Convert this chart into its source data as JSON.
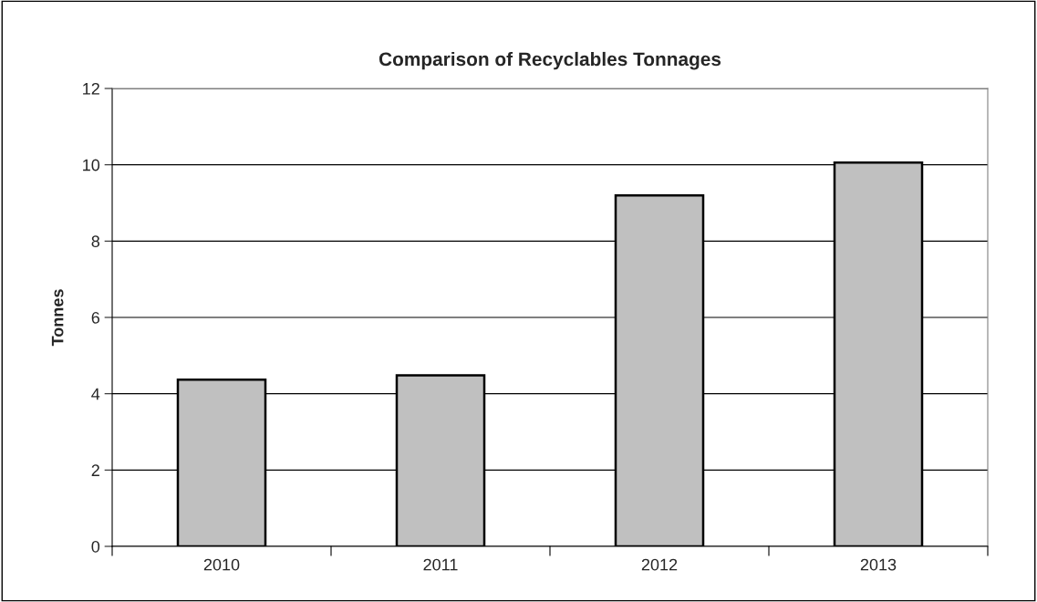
{
  "chart_data": {
    "type": "bar",
    "title": "Comparison of Recyclables Tonnages",
    "ylabel": "Tonnes",
    "categories": [
      "2010",
      "2011",
      "2012",
      "2013"
    ],
    "values": [
      4.37,
      4.48,
      9.2,
      10.06
    ],
    "color": "#c0c0c0",
    "ylim": [
      0,
      12
    ],
    "yticks": [
      0,
      2,
      4,
      6,
      8,
      10,
      12
    ],
    "grid": "y"
  }
}
